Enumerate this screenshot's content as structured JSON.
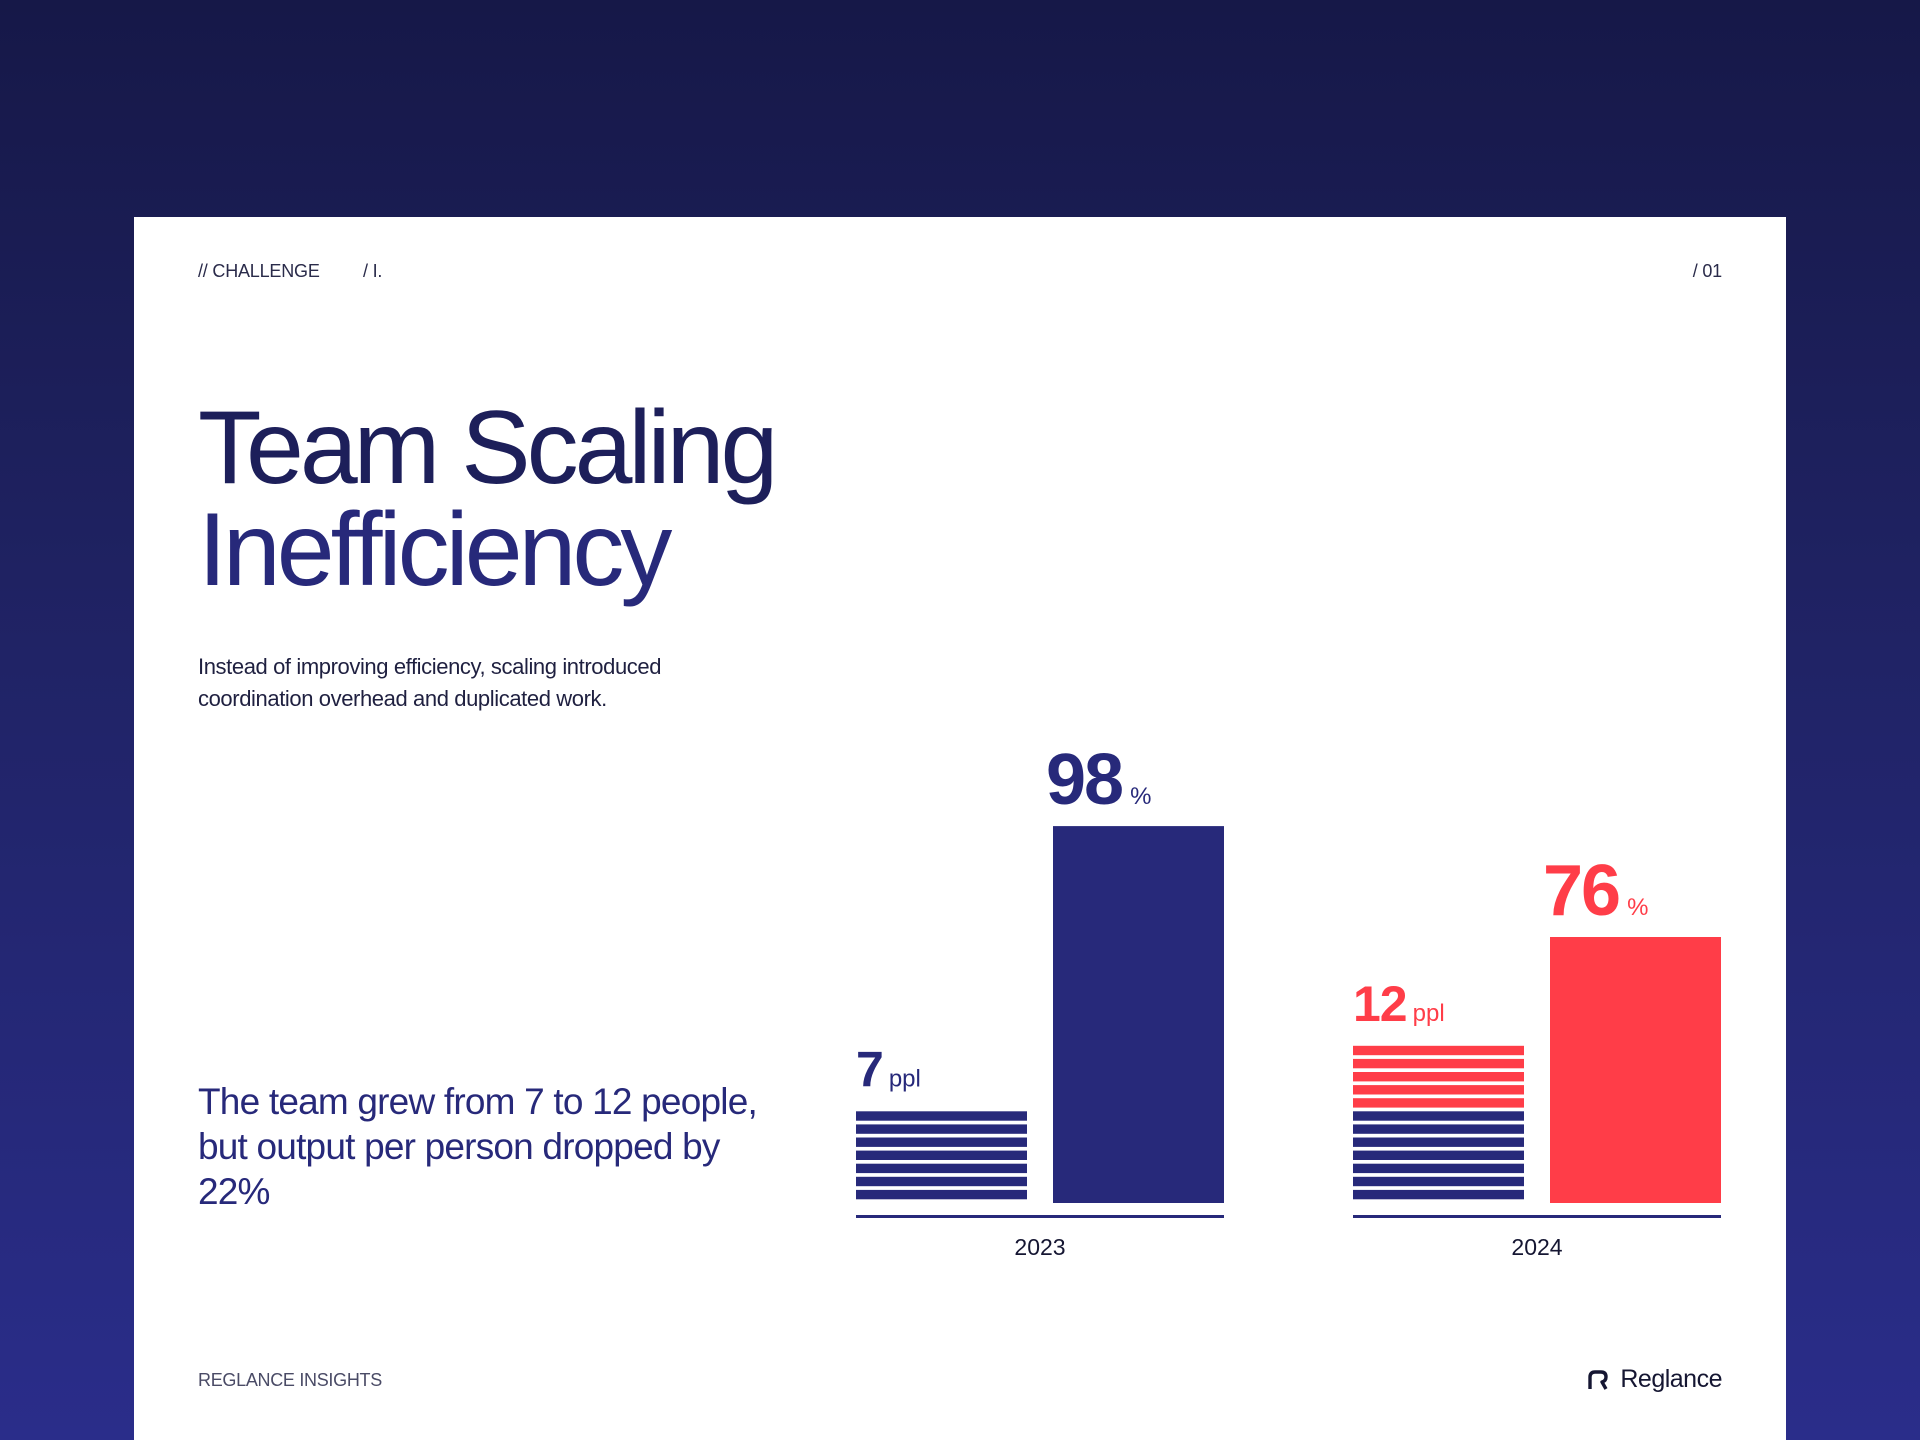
{
  "header": {
    "section": "// CHALLENGE",
    "subsection": "/ I.",
    "page_number": "/ 01"
  },
  "title": {
    "line1": "Team Scaling",
    "line2": "Inefficiency"
  },
  "description": "Instead of improving efficiency, scaling introduced coordination overhead and duplicated work.",
  "callout": "The team grew from 7 to 12 people, but output per person dropped by 22%",
  "footer": {
    "left_label": "REGLANCE INSIGHTS",
    "brand_name": "Reglance",
    "brand_icon": "reglance-logo-icon"
  },
  "colors": {
    "navy": "#27297a",
    "red": "#ff3d48",
    "dark_text": "#1d1f5a"
  },
  "chart_data": {
    "type": "bar",
    "categories": [
      "2023",
      "2024"
    ],
    "groups": [
      {
        "year": "2023",
        "team": {
          "value": 7,
          "label": "7",
          "unit": "ppl",
          "carried_over": 7,
          "added": 0
        },
        "rate": {
          "value": 98,
          "label": "98",
          "unit": "%"
        },
        "color": "#27297a"
      },
      {
        "year": "2024",
        "team": {
          "value": 12,
          "label": "12",
          "unit": "ppl",
          "carried_over": 7,
          "added": 5
        },
        "rate": {
          "value": 76,
          "label": "76",
          "unit": "%"
        },
        "color": "#ff3d48"
      }
    ],
    "ylim": [
      0,
      100
    ],
    "grid": false,
    "legend": "none"
  }
}
